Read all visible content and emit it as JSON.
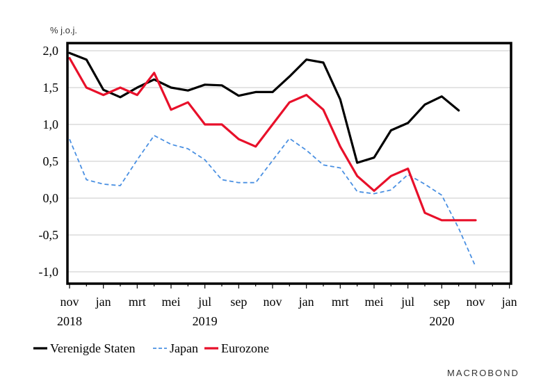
{
  "chart_data": {
    "type": "line",
    "unit_label": "% j.o.j.",
    "ylim": [
      -1.0,
      2.0
    ],
    "y_ticks": [
      "2,0",
      "1,5",
      "1,0",
      "0,5",
      "0,0",
      "-0,5",
      "-1,0"
    ],
    "y_tick_values": [
      2.0,
      1.5,
      1.0,
      0.5,
      0.0,
      -0.5,
      -1.0
    ],
    "x_ticks": [
      "nov",
      "jan",
      "mrt",
      "mei",
      "jul",
      "sep",
      "nov",
      "jan",
      "mrt",
      "mei",
      "jul",
      "sep",
      "nov",
      "jan"
    ],
    "x_tick_months": [
      "2018-11",
      "2019-01",
      "2019-03",
      "2019-05",
      "2019-07",
      "2019-09",
      "2019-11",
      "2020-01",
      "2020-03",
      "2020-05",
      "2020-07",
      "2020-09",
      "2020-11",
      "2021-01"
    ],
    "year_labels": [
      {
        "label": "2018",
        "month": "2018-11"
      },
      {
        "label": "2019",
        "month": "2019-07"
      },
      {
        "label": "2020",
        "month": "2020-09"
      }
    ],
    "grid": true,
    "legend_position": "bottom-left",
    "series": [
      {
        "name": "Verenigde Staten",
        "color": "#000000",
        "style": "solid",
        "x": [
          "2018-11",
          "2018-12",
          "2019-01",
          "2019-02",
          "2019-03",
          "2019-04",
          "2019-05",
          "2019-06",
          "2019-07",
          "2019-08",
          "2019-09",
          "2019-10",
          "2019-11",
          "2019-12",
          "2020-01",
          "2020-02",
          "2020-03",
          "2020-04",
          "2020-05",
          "2020-06",
          "2020-07",
          "2020-08",
          "2020-09",
          "2020-10"
        ],
        "values": [
          1.97,
          1.88,
          1.47,
          1.37,
          1.5,
          1.61,
          1.5,
          1.46,
          1.54,
          1.53,
          1.39,
          1.44,
          1.44,
          1.65,
          1.88,
          1.84,
          1.34,
          0.48,
          0.55,
          0.92,
          1.02,
          1.27,
          1.38,
          1.19
        ]
      },
      {
        "name": "Japan",
        "color": "#4a90e2",
        "style": "dashed",
        "x": [
          "2018-11",
          "2018-12",
          "2019-01",
          "2019-02",
          "2019-03",
          "2019-04",
          "2019-05",
          "2019-06",
          "2019-07",
          "2019-08",
          "2019-09",
          "2019-10",
          "2019-11",
          "2019-12",
          "2020-01",
          "2020-02",
          "2020-03",
          "2020-04",
          "2020-05",
          "2020-06",
          "2020-07",
          "2020-08",
          "2020-09",
          "2020-10",
          "2020-11"
        ],
        "values": [
          0.8,
          0.25,
          0.19,
          0.17,
          0.52,
          0.85,
          0.73,
          0.67,
          0.52,
          0.25,
          0.21,
          0.21,
          0.51,
          0.81,
          0.65,
          0.45,
          0.41,
          0.09,
          0.06,
          0.11,
          0.32,
          0.19,
          0.04,
          -0.41,
          -0.93
        ]
      },
      {
        "name": "Eurozone",
        "color": "#e8102a",
        "style": "solid",
        "x": [
          "2018-11",
          "2018-12",
          "2019-01",
          "2019-02",
          "2019-03",
          "2019-04",
          "2019-05",
          "2019-06",
          "2019-07",
          "2019-08",
          "2019-09",
          "2019-10",
          "2019-11",
          "2019-12",
          "2020-01",
          "2020-02",
          "2020-03",
          "2020-04",
          "2020-05",
          "2020-06",
          "2020-07",
          "2020-08",
          "2020-09",
          "2020-10",
          "2020-11"
        ],
        "values": [
          1.9,
          1.5,
          1.4,
          1.5,
          1.4,
          1.7,
          1.2,
          1.3,
          1.0,
          1.0,
          0.8,
          0.7,
          1.0,
          1.3,
          1.4,
          1.2,
          0.7,
          0.3,
          0.1,
          0.3,
          0.4,
          -0.2,
          -0.3,
          -0.3,
          -0.3
        ]
      }
    ]
  },
  "brand": "MACROBOND"
}
